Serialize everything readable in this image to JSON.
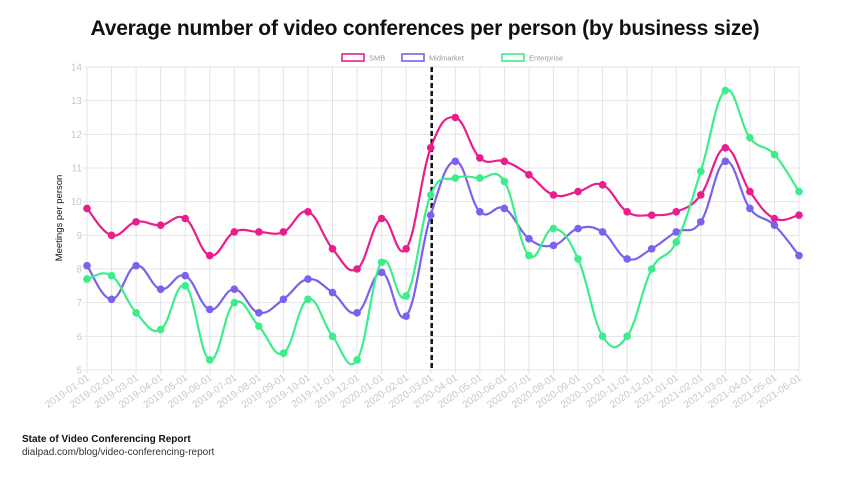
{
  "title": "Average number of video conferences per person (by business size)",
  "footer": {
    "report_title": "State of Video Conferencing Report",
    "url": "dialpad.com/blog/video-conferencing-report"
  },
  "colors": {
    "SMB": "#e91e8c",
    "Midmarket": "#7b61ed",
    "Enterprise": "#3ded8c",
    "grid": "#e4e4e8",
    "tick_text": "#c8c8cc",
    "divider": "#111111"
  },
  "chart_data": {
    "type": "line",
    "title": "Average number of video conferences per person (by business size)",
    "xlabel": "",
    "ylabel": "Meetings per person",
    "ylim": [
      5,
      14
    ],
    "yticks": [
      5,
      6,
      7,
      8,
      9,
      10,
      11,
      12,
      13,
      14
    ],
    "grid": true,
    "legend_position": "top",
    "annotations": [
      {
        "type": "vertical-dashed-line",
        "x": "2020-03-01"
      }
    ],
    "x": [
      "2019-01-01",
      "2019-02-01",
      "2019-03-01",
      "2019-04-01",
      "2019-05-01",
      "2019-06-01",
      "2019-07-01",
      "2019-08-01",
      "2019-09-01",
      "2019-10-01",
      "2019-11-01",
      "2019-12-01",
      "2020-01-01",
      "2020-02-01",
      "2020-03-01",
      "2020-04-01",
      "2020-05-01",
      "2020-06-01",
      "2020-07-01",
      "2020-08-01",
      "2020-09-01",
      "2020-10-01",
      "2020-11-01",
      "2020-12-01",
      "2021-01-01",
      "2021-02-01",
      "2021-03-01",
      "2021-04-01",
      "2021-05-01",
      "2021-06-01"
    ],
    "series": [
      {
        "name": "SMB",
        "values": [
          9.8,
          9.0,
          9.4,
          9.3,
          9.5,
          8.4,
          9.1,
          9.1,
          9.1,
          9.7,
          8.6,
          8.0,
          9.5,
          8.6,
          11.6,
          12.5,
          11.3,
          11.2,
          10.8,
          10.2,
          10.3,
          10.5,
          9.7,
          9.6,
          9.7,
          10.2,
          11.6,
          10.3,
          9.5,
          9.6
        ]
      },
      {
        "name": "Midmarket",
        "values": [
          8.1,
          7.1,
          8.1,
          7.4,
          7.8,
          6.8,
          7.4,
          6.7,
          7.1,
          7.7,
          7.3,
          6.7,
          7.9,
          6.6,
          9.6,
          11.2,
          9.7,
          9.8,
          8.9,
          8.7,
          9.2,
          9.1,
          8.3,
          8.6,
          9.1,
          9.4,
          11.2,
          9.8,
          9.3,
          8.4
        ]
      },
      {
        "name": "Enterprise",
        "values": [
          7.7,
          7.8,
          6.7,
          6.2,
          7.5,
          5.3,
          7.0,
          6.3,
          5.5,
          7.1,
          6.0,
          5.3,
          8.2,
          7.2,
          10.2,
          10.7,
          10.7,
          10.6,
          8.4,
          9.2,
          8.3,
          6.0,
          6.0,
          8.0,
          8.8,
          10.9,
          13.3,
          11.9,
          11.4,
          10.3
        ]
      }
    ]
  }
}
